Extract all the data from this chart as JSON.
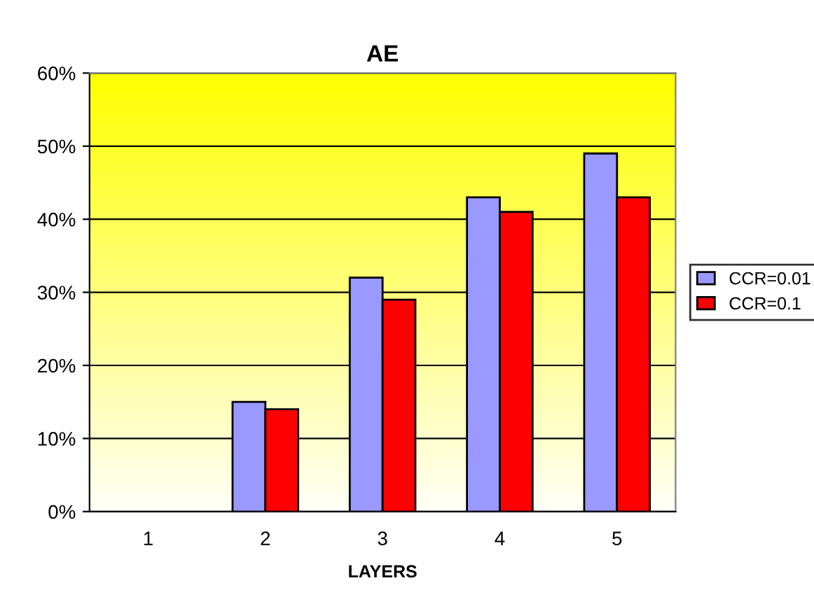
{
  "chart_data": {
    "type": "bar",
    "title": "AE",
    "xlabel": "LAYERS",
    "categories": [
      "1",
      "2",
      "3",
      "4",
      "5"
    ],
    "series": [
      {
        "name": "CCR=0.01",
        "color": "#9999ff",
        "values": [
          null,
          15,
          32,
          43,
          49
        ]
      },
      {
        "name": "CCR=0.1",
        "color": "#ff0000",
        "values": [
          null,
          14,
          29,
          41,
          43
        ]
      }
    ],
    "ylim": [
      0,
      60
    ],
    "yticks": [
      {
        "value": 0,
        "label": "0%"
      },
      {
        "value": 10,
        "label": "10%"
      },
      {
        "value": 20,
        "label": "20%"
      },
      {
        "value": 30,
        "label": "30%"
      },
      {
        "value": 40,
        "label": "40%"
      },
      {
        "value": 50,
        "label": "50%"
      },
      {
        "value": 60,
        "label": "60%"
      }
    ],
    "grid": "y",
    "legend": "right"
  }
}
